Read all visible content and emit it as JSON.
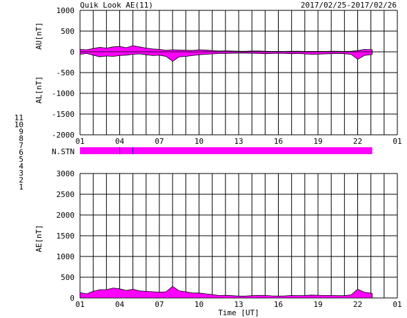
{
  "header": {
    "title": "Quik Look AE(11)",
    "date_range": "2017/02/25-2017/02/26"
  },
  "legend_numbers": [
    {
      "label": "11",
      "color": "#00e0e0"
    },
    {
      "label": "10",
      "color": "#ff00ff"
    },
    {
      "label": "9",
      "color": "#0000cc"
    },
    {
      "label": "8",
      "color": "#ffd000"
    },
    {
      "label": "7",
      "color": "#80d080"
    },
    {
      "label": "6",
      "color": "#ff0000"
    },
    {
      "label": "5",
      "color": "#c0c0c0"
    },
    {
      "label": "4",
      "color": "#909090"
    },
    {
      "label": "3",
      "color": "#008080"
    },
    {
      "label": "2",
      "color": "#800080"
    },
    {
      "label": "1",
      "color": "#0000cc"
    }
  ],
  "nstn_label": "N.STN",
  "chart_data": [
    {
      "type": "area",
      "title": "AU/AL",
      "ylabel_top": "AU[nT]",
      "ylabel_bottom": "AL[nT]",
      "ylim": [
        -2000,
        1000
      ],
      "yticks": [
        1000,
        500,
        0,
        -500,
        -1000,
        -1500,
        -2000
      ],
      "xlim": [
        1,
        25
      ],
      "xticks": [
        "01",
        "04",
        "07",
        "10",
        "13",
        "16",
        "19",
        "22",
        "01"
      ],
      "fill_color": "#ff00ff",
      "series": [
        {
          "x": [
            1,
            1.5,
            2,
            2.5,
            3,
            3.5,
            4,
            4.5,
            5,
            5.5,
            6,
            6.5,
            7,
            7.5,
            8,
            8.5,
            9,
            9.5,
            10,
            10.5,
            11,
            11.5,
            12,
            12.5,
            13,
            13.5,
            14,
            14.5,
            15,
            15.5,
            16,
            16.5,
            17,
            17.5,
            18,
            18.5,
            19,
            19.5,
            20,
            20.5,
            21,
            21.5,
            22,
            22.5,
            23.1
          ],
          "values": [
            60,
            50,
            80,
            110,
            90,
            120,
            130,
            100,
            150,
            120,
            90,
            70,
            60,
            40,
            50,
            45,
            40,
            35,
            50,
            45,
            30,
            20,
            25,
            20,
            15,
            15,
            20,
            20,
            15,
            10,
            10,
            10,
            15,
            15,
            10,
            10,
            10,
            10,
            15,
            15,
            10,
            15,
            30,
            60,
            50
          ]
        },
        {
          "x": [
            1,
            1.5,
            2,
            2.5,
            3,
            3.5,
            4,
            4.5,
            5,
            5.5,
            6,
            6.5,
            7,
            7.5,
            8,
            8.5,
            9,
            9.5,
            10,
            10.5,
            11,
            11.5,
            12,
            12.5,
            13,
            13.5,
            14,
            14.5,
            15,
            15.5,
            16,
            16.5,
            17,
            17.5,
            18,
            18.5,
            19,
            19.5,
            20,
            20.5,
            21,
            21.5,
            22,
            22.5,
            23.1
          ],
          "values": [
            -60,
            -40,
            -80,
            -120,
            -100,
            -110,
            -90,
            -80,
            -60,
            -50,
            -70,
            -90,
            -80,
            -110,
            -230,
            -120,
            -110,
            -90,
            -70,
            -60,
            -50,
            -40,
            -40,
            -35,
            -30,
            -30,
            -35,
            -40,
            -45,
            -40,
            -35,
            -40,
            -45,
            -40,
            -50,
            -60,
            -55,
            -50,
            -45,
            -40,
            -45,
            -60,
            -180,
            -90,
            -60
          ]
        }
      ]
    },
    {
      "type": "area",
      "title": "AE",
      "ylabel": "AE[nT]",
      "xlabel": "Time [UT]",
      "ylim": [
        0,
        3000
      ],
      "yticks": [
        3000,
        2500,
        2000,
        1500,
        1000,
        500,
        0
      ],
      "xlim": [
        1,
        25
      ],
      "xticks": [
        "01",
        "04",
        "07",
        "10",
        "13",
        "16",
        "19",
        "22",
        "01"
      ],
      "fill_color": "#ff00ff",
      "series": [
        {
          "x": [
            1,
            1.5,
            2,
            2.5,
            3,
            3.5,
            4,
            4.5,
            5,
            5.5,
            6,
            6.5,
            7,
            7.5,
            8,
            8.5,
            9,
            9.5,
            10,
            10.5,
            11,
            11.5,
            12,
            12.5,
            13,
            13.5,
            14,
            14.5,
            15,
            15.5,
            16,
            16.5,
            17,
            17.5,
            18,
            18.5,
            19,
            19.5,
            20,
            20.5,
            21,
            21.5,
            22,
            22.5,
            23.1
          ],
          "values": [
            130,
            100,
            160,
            200,
            200,
            240,
            220,
            180,
            210,
            170,
            160,
            150,
            140,
            150,
            280,
            170,
            150,
            120,
            120,
            100,
            80,
            60,
            65,
            55,
            45,
            45,
            55,
            60,
            60,
            50,
            45,
            50,
            60,
            55,
            60,
            70,
            65,
            60,
            60,
            55,
            55,
            75,
            210,
            140,
            110
          ]
        }
      ]
    }
  ]
}
